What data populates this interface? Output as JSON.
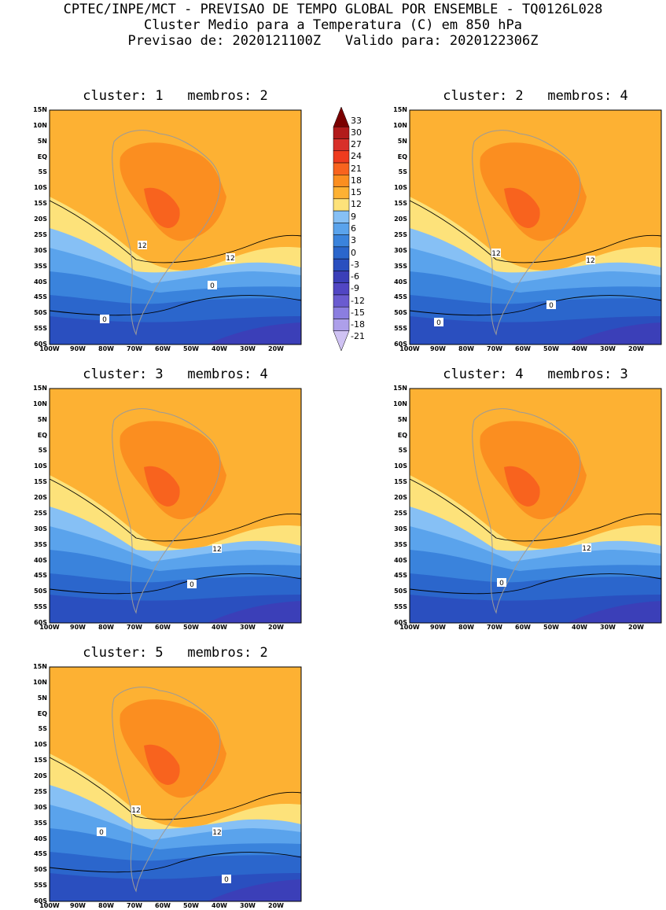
{
  "header": {
    "line1": "CPTEC/INPE/MCT - PREVISAO DE TEMPO GLOBAL POR ENSEMBLE - TQ0126L028",
    "line2": "Cluster Medio para a Temperatura (C) em 850 hPa",
    "line3": "Previsao de: 2020121100Z   Valido para: 2020122306Z"
  },
  "lat_labels": [
    "15N",
    "10N",
    "5N",
    "EQ",
    "5S",
    "10S",
    "15S",
    "20S",
    "25S",
    "30S",
    "35S",
    "40S",
    "45S",
    "50S",
    "55S",
    "60S"
  ],
  "lon_labels": [
    "100W",
    "90W",
    "80W",
    "70W",
    "60W",
    "50W",
    "40W",
    "30W",
    "20W"
  ],
  "colorbar": {
    "labels": [
      "33",
      "30",
      "27",
      "24",
      "21",
      "18",
      "15",
      "12",
      "9",
      "6",
      "3",
      "0",
      "-3",
      "-6",
      "-9",
      "-12",
      "-15",
      "-18",
      "-21"
    ],
    "colors": [
      "#7a0000",
      "#b21b1b",
      "#d8302a",
      "#ef3b1e",
      "#f8631e",
      "#fb8e20",
      "#fdb133",
      "#fde27a",
      "#86c0f5",
      "#5aa3ec",
      "#3a83dc",
      "#2b66cc",
      "#2a4fbf",
      "#3b3fb8",
      "#5146c3",
      "#6a5bd0",
      "#8b7ee0",
      "#ad9fea",
      "#cfc2f3"
    ]
  },
  "clusters": [
    {
      "title": "cluster: 1   membros: 2",
      "contour_labels": [
        "12",
        "12",
        "0",
        "0"
      ]
    },
    {
      "title": "cluster: 2   membros: 4",
      "contour_labels": [
        "12",
        "12",
        "0",
        "0"
      ]
    },
    {
      "title": "cluster: 3   membros: 4",
      "contour_labels": [
        "12",
        "0"
      ]
    },
    {
      "title": "cluster: 4   membros: 3",
      "contour_labels": [
        "12",
        "0"
      ]
    },
    {
      "title": "cluster: 5   membros: 2",
      "contour_labels": [
        "12",
        "12",
        "0",
        "0"
      ]
    }
  ]
}
